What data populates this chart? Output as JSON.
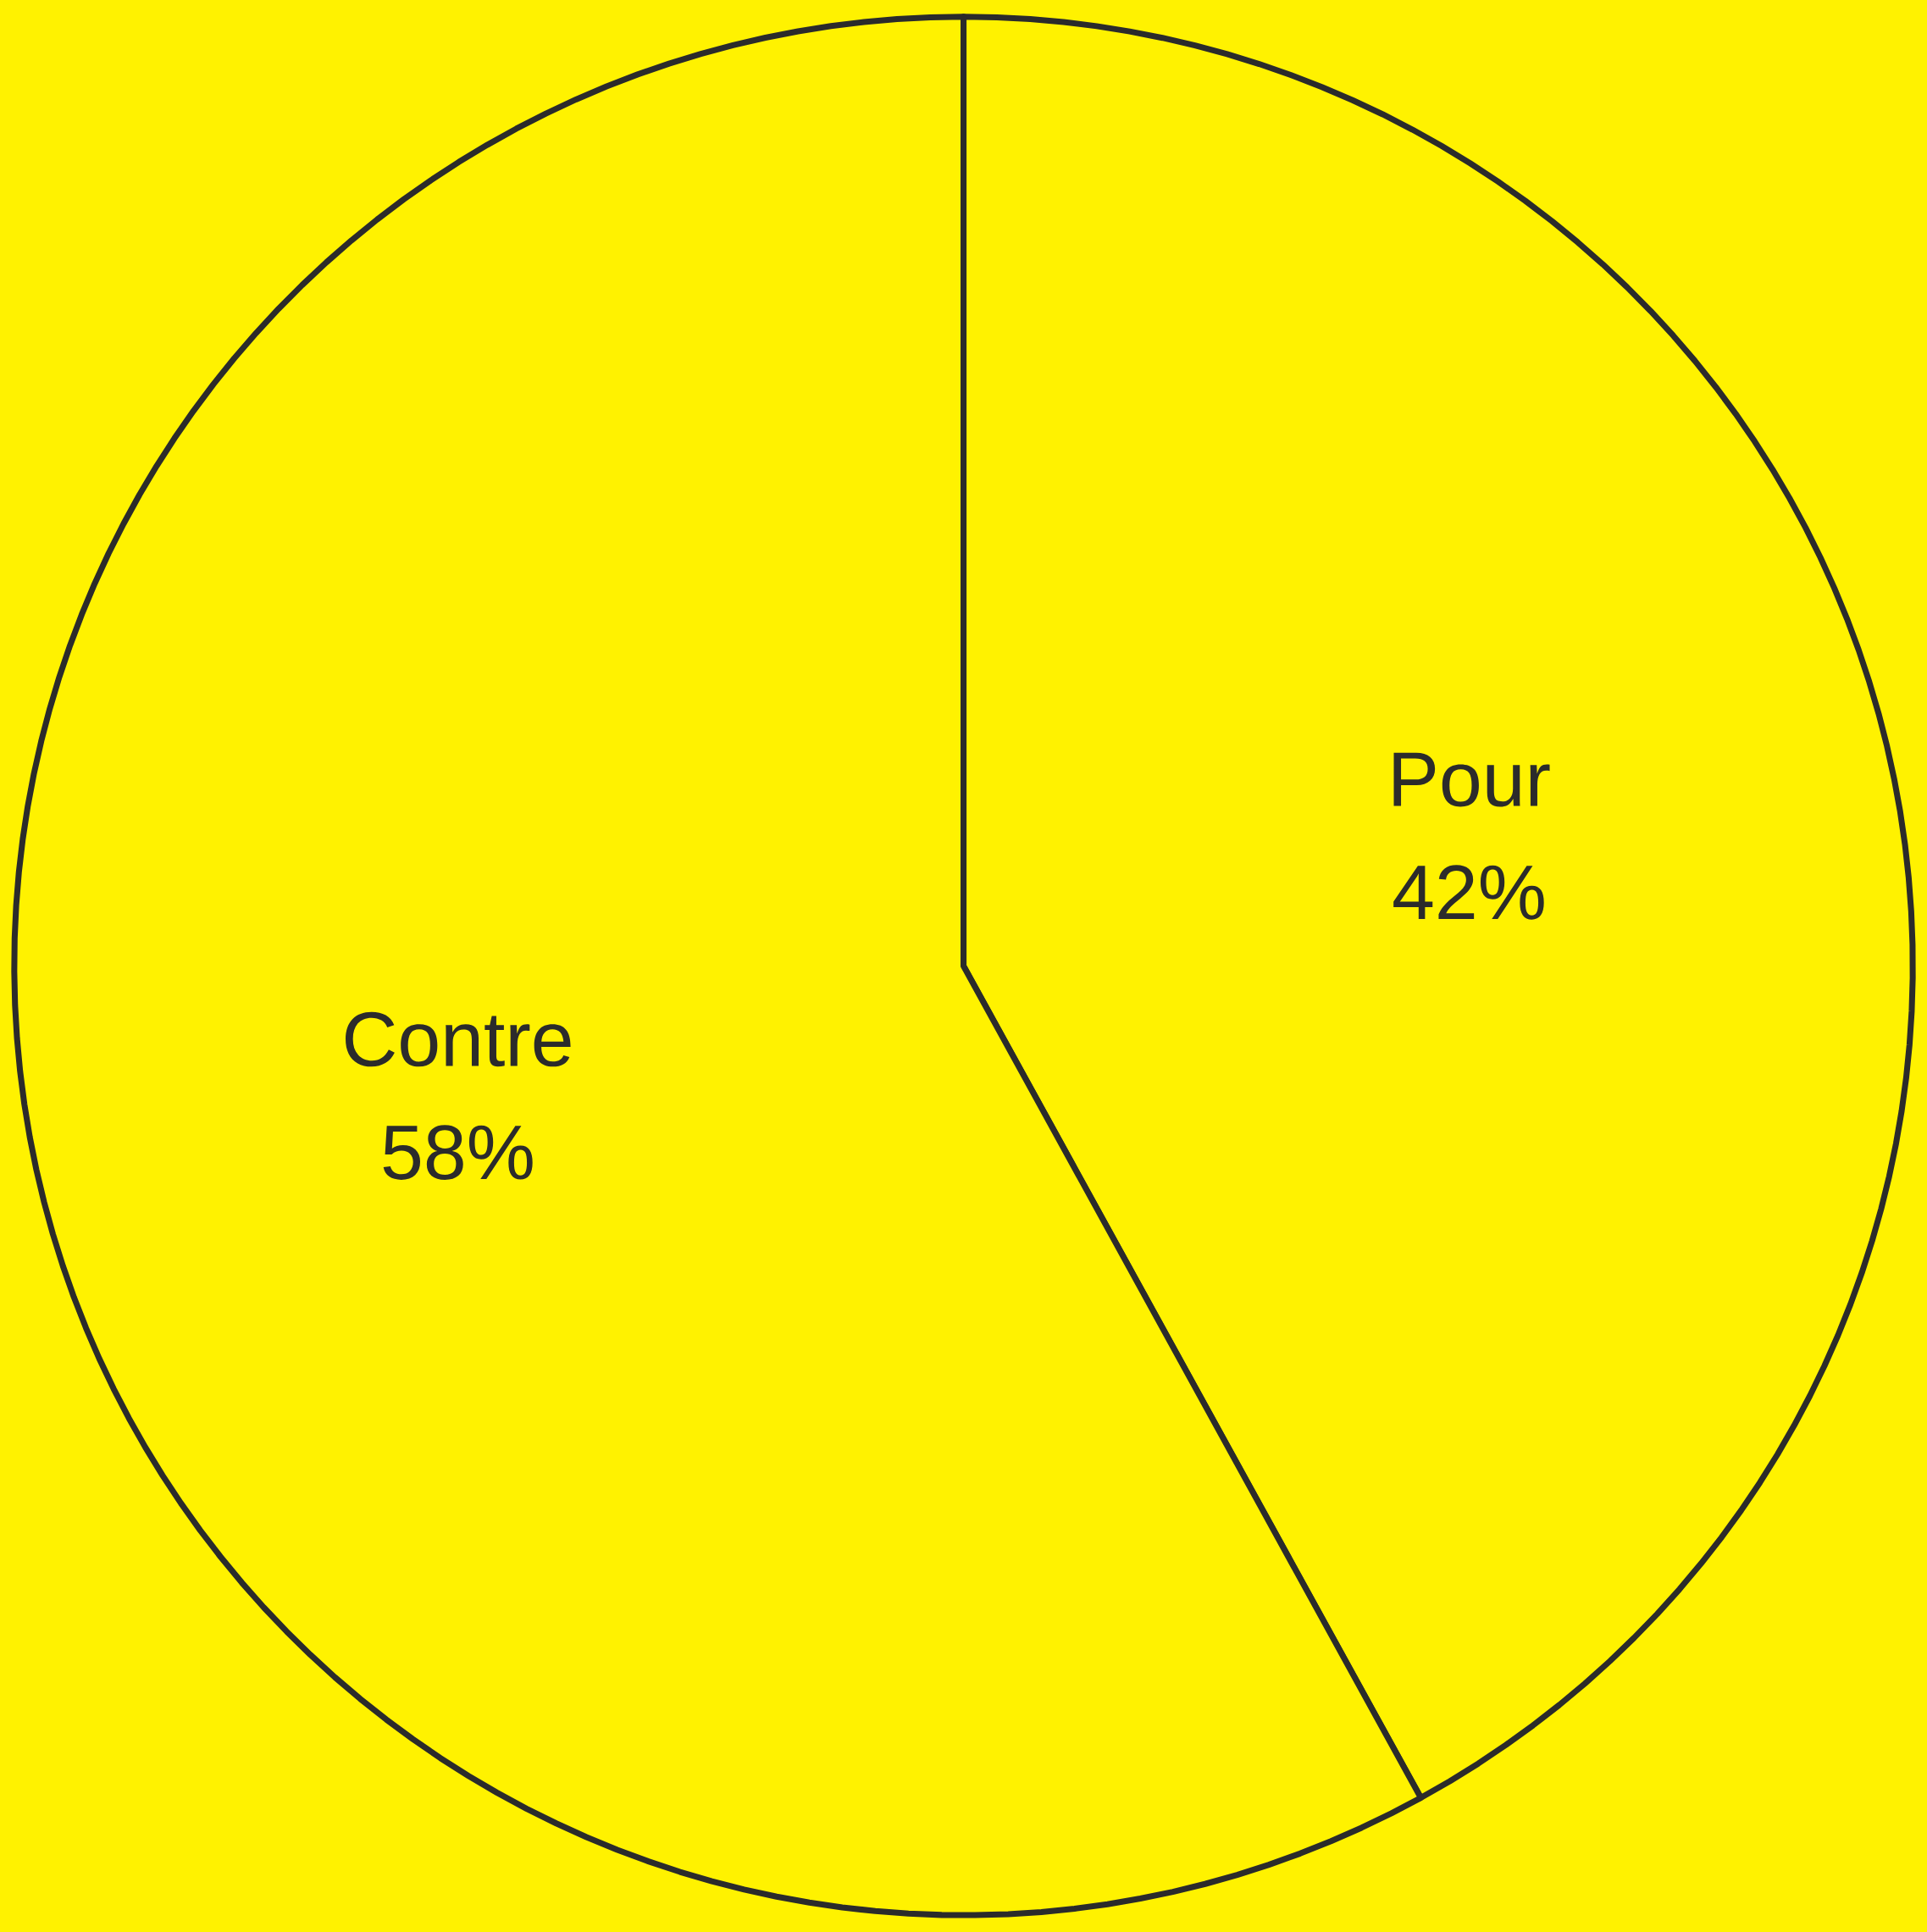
{
  "chart_data": {
    "type": "pie",
    "categories": [
      "Pour",
      "Contre"
    ],
    "values": [
      42,
      58
    ],
    "colors": [
      "#fff200",
      "#fff200"
    ],
    "value_labels": [
      "42%",
      "58%"
    ]
  }
}
